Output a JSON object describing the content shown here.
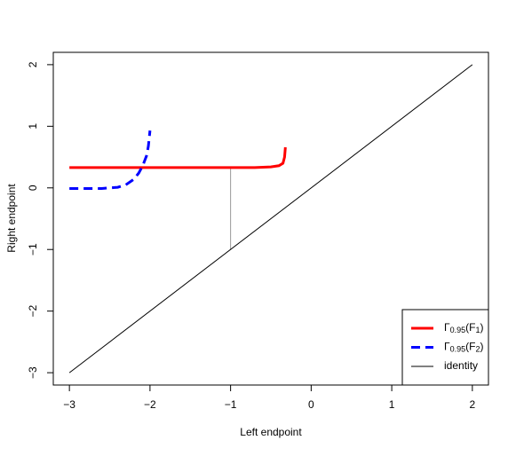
{
  "chart_data": {
    "type": "line",
    "xlabel": "Left endpoint",
    "ylabel": "Right endpoint",
    "xlim": [
      -3.2,
      2.2
    ],
    "ylim": [
      -3.2,
      2.2
    ],
    "xticks": [
      {
        "value": -3,
        "label": "−3"
      },
      {
        "value": -2,
        "label": "−2"
      },
      {
        "value": -1,
        "label": "−1"
      },
      0,
      1,
      2
    ],
    "yticks": [
      {
        "value": -3,
        "label": "−3"
      },
      {
        "value": -2,
        "label": "−2"
      },
      {
        "value": -1,
        "label": "−1"
      },
      0,
      1,
      2
    ],
    "legend": "bottom-right",
    "series": [
      {
        "name": "Γ0.95(F1)",
        "color": "#ff0000",
        "linestyle": "solid",
        "linewidth": 3,
        "x": [
          -3,
          -2.5,
          -2,
          -1.5,
          -1,
          -0.7,
          -0.5,
          -0.4,
          -0.35,
          -0.33,
          -0.32
        ],
        "values": [
          0.33,
          0.33,
          0.33,
          0.33,
          0.33,
          0.33,
          0.34,
          0.36,
          0.4,
          0.5,
          0.66
        ]
      },
      {
        "name": "Γ0.95(F2)",
        "color": "#0000ff",
        "linestyle": "dashed",
        "linewidth": 3,
        "x": [
          -3,
          -2.6,
          -2.4,
          -2.3,
          -2.2,
          -2.14,
          -2.09,
          -2.04,
          -2.02,
          -2.0
        ],
        "values": [
          -0.01,
          -0.01,
          0.01,
          0.05,
          0.14,
          0.24,
          0.36,
          0.53,
          0.68,
          0.93
        ]
      },
      {
        "name": "identity",
        "color": "#000000",
        "linestyle": "solid",
        "linewidth": 1,
        "x": [
          -3,
          2
        ],
        "values": [
          -3,
          2
        ]
      }
    ],
    "segments": [
      {
        "color": "#999999",
        "x": [
          -1,
          -1
        ],
        "y": [
          -1,
          0.33
        ]
      }
    ]
  }
}
